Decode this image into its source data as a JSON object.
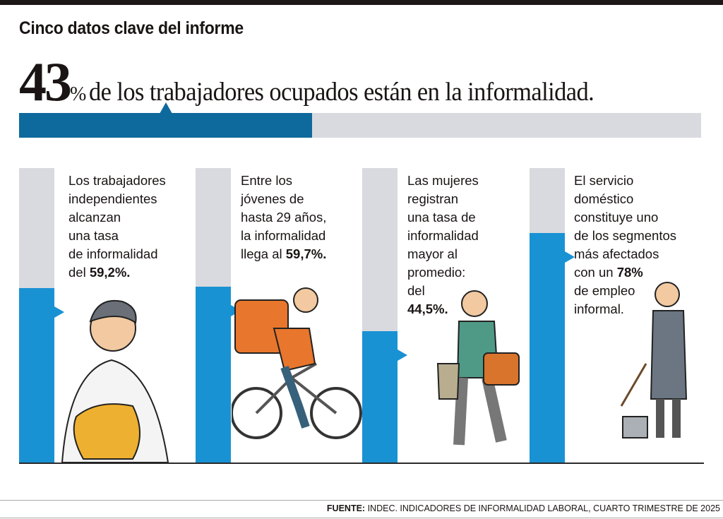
{
  "title": "Cinco datos clave del informe",
  "headline": {
    "number": "43",
    "pct_sign": "%",
    "text": "de los trabajadores ocupados están en la informalidad."
  },
  "chart_data": {
    "type": "bar",
    "title": "Cinco datos clave del informe",
    "overall": {
      "label": "Trabajadores ocupados en la informalidad",
      "value": 43,
      "max": 100
    },
    "categories": [
      "Trabajadores independientes",
      "Jóvenes de hasta 29 años",
      "Mujeres",
      "Servicio doméstico"
    ],
    "values": [
      59.2,
      59.7,
      44.5,
      78
    ],
    "ylim": [
      0,
      100
    ],
    "colors": {
      "fill": "#1992d4",
      "overall_fill": "#0e6a9c",
      "track": "#d9dadf"
    }
  },
  "facts": [
    {
      "lines": [
        "Los trabajadores",
        "independientes",
        "alcanzan",
        "una tasa",
        "de informalidad"
      ],
      "pre": "del ",
      "value": "59,2%."
    },
    {
      "lines": [
        "Entre los",
        "jóvenes de",
        "hasta 29 años,",
        "la informalidad"
      ],
      "pre": "llega al ",
      "value": "59,7%."
    },
    {
      "lines": [
        "Las mujeres",
        "registran",
        "una tasa de",
        "informalidad",
        "mayor al",
        "promedio:",
        "del"
      ],
      "pre": "",
      "value": "44,5%."
    },
    {
      "lines": [
        "El servicio",
        "doméstico",
        "constituye uno",
        "de los segmentos",
        "más afectados"
      ],
      "pre": "con un ",
      "value": "78%",
      "post_lines": [
        "de empleo",
        "informal."
      ]
    }
  ],
  "source": {
    "label": "FUENTE:",
    "text": "INDEC. INDICADORES DE INFORMALIDAD LABORAL, CUARTO TRIMESTRE DE 2025"
  }
}
